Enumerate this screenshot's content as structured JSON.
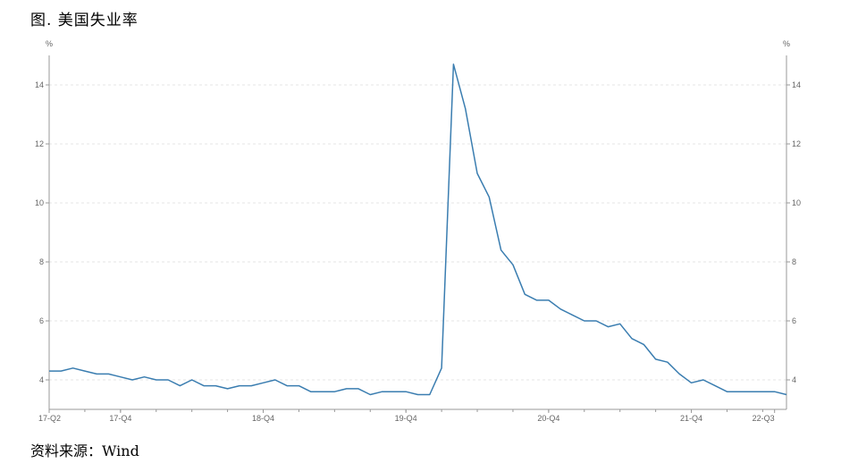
{
  "figure": {
    "title": "图. 美国失业率",
    "source": "资料来源：Wind"
  },
  "chart_data": {
    "type": "line",
    "title": "图. 美国失业率",
    "xlabel": "",
    "ylabel_left": "%",
    "ylabel_right": "%",
    "ylim": [
      3,
      15
    ],
    "yticks": [
      4,
      6,
      8,
      10,
      12,
      14
    ],
    "grid": true,
    "x_ticks": [
      "17-Q2",
      "17-Q4",
      "18-Q4",
      "19-Q4",
      "20-Q4",
      "21-Q4",
      "22-Q3"
    ],
    "x_tick_index": [
      0,
      6,
      18,
      30,
      42,
      54,
      61
    ],
    "series": [
      {
        "name": "",
        "color": "#3a7db0",
        "values": [
          4.3,
          4.3,
          4.4,
          4.3,
          4.2,
          4.2,
          4.1,
          4.0,
          4.1,
          4.0,
          4.0,
          3.8,
          4.0,
          3.8,
          3.8,
          3.7,
          3.8,
          3.8,
          3.9,
          4.0,
          3.8,
          3.8,
          3.6,
          3.6,
          3.6,
          3.7,
          3.7,
          3.5,
          3.6,
          3.6,
          3.6,
          3.5,
          3.5,
          4.4,
          14.7,
          13.2,
          11.0,
          10.2,
          8.4,
          7.9,
          6.9,
          6.7,
          6.7,
          6.4,
          6.2,
          6.0,
          6.0,
          5.8,
          5.9,
          5.4,
          5.2,
          4.7,
          4.6,
          4.2,
          3.9,
          4.0,
          3.8,
          3.6,
          3.6,
          3.6,
          3.6,
          3.6,
          3.5
        ]
      }
    ]
  }
}
